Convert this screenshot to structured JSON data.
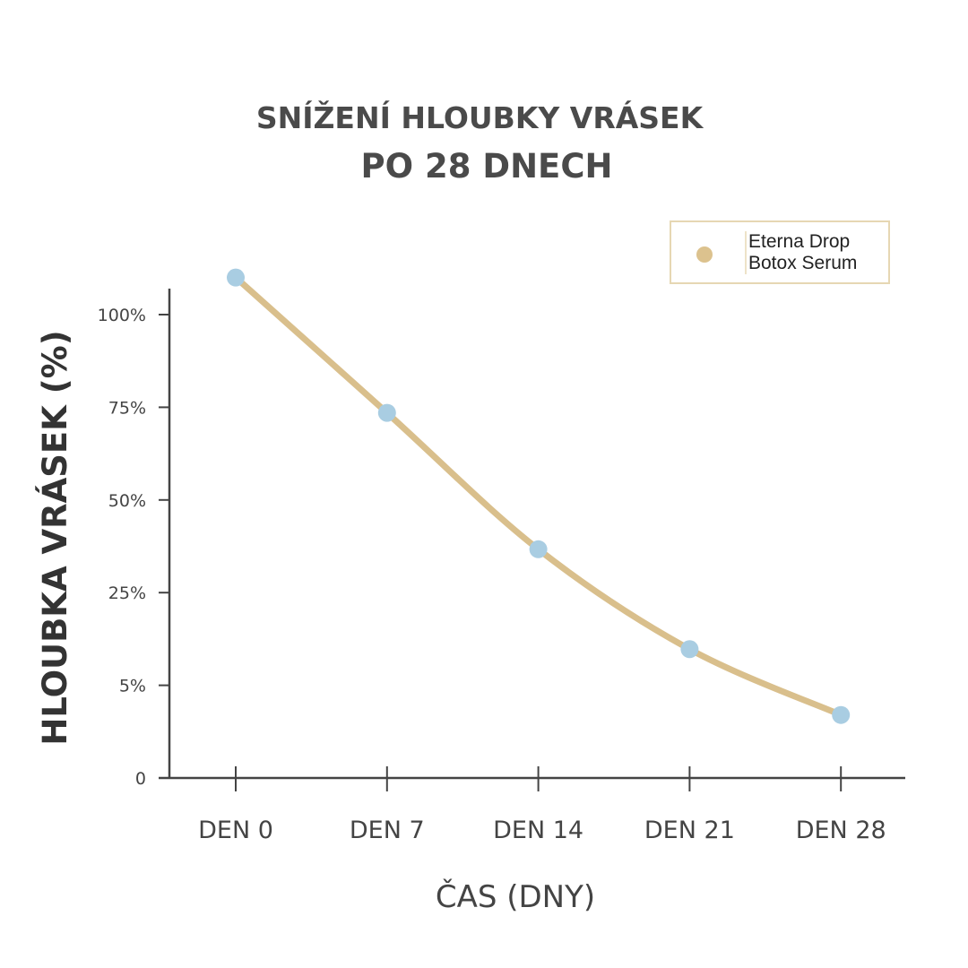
{
  "chart_data": {
    "type": "line",
    "title": "SNÍŽENÍ HLOUBKY VRÁSEK",
    "subtitle": "PO 28 DNECH",
    "xlabel": "ČAS (DNY)",
    "ylabel": "HLOUBKA VRÁSEK (%)",
    "categories": [
      "DEN 0",
      "DEN 7",
      "DEN 14",
      "DEN 21",
      "DEN 28"
    ],
    "y_ticks": [
      0,
      5,
      25,
      50,
      75,
      100
    ],
    "y_tick_labels": [
      "0",
      "5%",
      "25%",
      "50%",
      "75%",
      "100%"
    ],
    "series": [
      {
        "name": "Eterna Drop Botox Serum",
        "values": [
          110,
          73.5,
          36.7,
          12.8,
          3.4
        ],
        "line_color": "#d9bf8c",
        "marker_color": "#a9cde2"
      }
    ],
    "legend": {
      "position": "top-right",
      "lines": [
        "Eterna Drop",
        "Botox Serum"
      ]
    },
    "grid": false
  }
}
